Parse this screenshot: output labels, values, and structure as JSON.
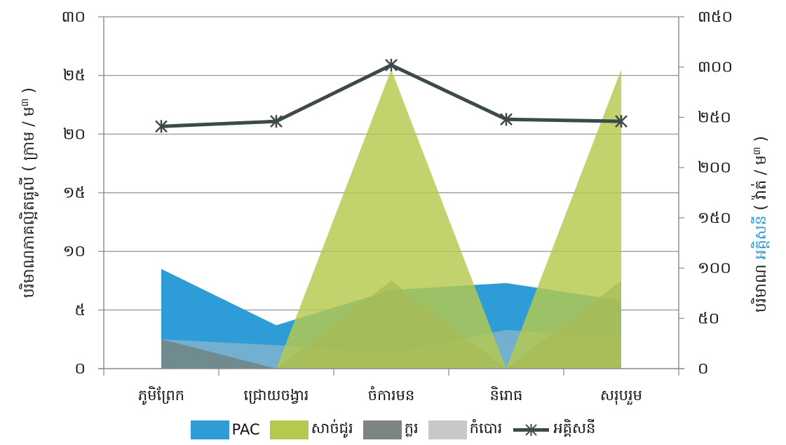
{
  "chart_data": {
    "type": "area",
    "categories": [
      "ភូមិព្រែក",
      "ជ្រោយចង្វារ",
      "ចំការមន",
      "និរោធ",
      "សរុបរួម"
    ],
    "y_left": {
      "label_prefix": "បរិមាណភាគល្អិតធូលី ( ក្រាម / ម",
      "label_sup": "៣",
      "label_suffix": " )",
      "ylim": [
        0,
        30
      ],
      "ticks": [
        {
          "v": 0,
          "label": "០"
        },
        {
          "v": 5,
          "label": "៥"
        },
        {
          "v": 10,
          "label": "១០"
        },
        {
          "v": 15,
          "label": "១៥"
        },
        {
          "v": 20,
          "label": "២០"
        },
        {
          "v": 25,
          "label": "២៥"
        },
        {
          "v": 30,
          "label": "៣០"
        }
      ]
    },
    "y_right": {
      "label_prefix": "បរិមាណ ",
      "label_highlight": "អគ្គិសនី",
      "label_mid": " ( វ៉ាត់ / ម",
      "label_sup": "៣",
      "label_suffix": " )",
      "highlight_color": "#2E9CD6",
      "ylim": [
        0,
        350
      ],
      "ticks": [
        {
          "v": 0,
          "label": "០"
        },
        {
          "v": 50,
          "label": "៥០"
        },
        {
          "v": 100,
          "label": "១០០"
        },
        {
          "v": 150,
          "label": "១៥០"
        },
        {
          "v": 200,
          "label": "២០០"
        },
        {
          "v": 250,
          "label": "២៥០"
        },
        {
          "v": 300,
          "label": "៣០០"
        },
        {
          "v": 350,
          "label": "៣៥០"
        }
      ]
    },
    "series": [
      {
        "name": "PAC",
        "type": "area",
        "axis": "left",
        "color": "#2E9CD6",
        "opacity": 1.0,
        "values": [
          8.5,
          3.7,
          6.7,
          7.3,
          5.8
        ]
      },
      {
        "name": "កំបោរ",
        "type": "area",
        "axis": "left",
        "color": "#C8C8C8",
        "opacity": 0.45,
        "values": [
          2.5,
          2.0,
          1.3,
          3.3,
          2.6
        ]
      },
      {
        "name": "ក្លរ",
        "type": "area",
        "axis": "left",
        "color": "#6E7C73",
        "opacity": 0.7,
        "values": [
          2.5,
          0,
          7.5,
          0,
          7.5
        ]
      },
      {
        "name": "សាច់ជូរ",
        "type": "area",
        "axis": "left",
        "color": "#B5C94E",
        "opacity": 0.82,
        "values": [
          0,
          0,
          25.5,
          0,
          25.5
        ]
      },
      {
        "name": "អគ្គិសនី",
        "type": "line",
        "axis": "right",
        "color": "#3D4A4A",
        "marker": "asterisk",
        "values": [
          241,
          246,
          302,
          248,
          246
        ]
      }
    ],
    "legend": {
      "placement": "bottom",
      "items": [
        {
          "name": "PAC",
          "color": "#2E9CD6",
          "kind": "swatch"
        },
        {
          "name": "សាច់ជូរ",
          "color": "#B5C94E",
          "kind": "swatch"
        },
        {
          "name": "ក្លរ",
          "color": "#7C8581",
          "kind": "swatch"
        },
        {
          "name": "កំបោរ",
          "color": "#C8C8C8",
          "kind": "swatch"
        },
        {
          "name": "អគ្គិសនី",
          "color": "#3D4A4A",
          "kind": "line"
        }
      ]
    },
    "grid": true
  }
}
